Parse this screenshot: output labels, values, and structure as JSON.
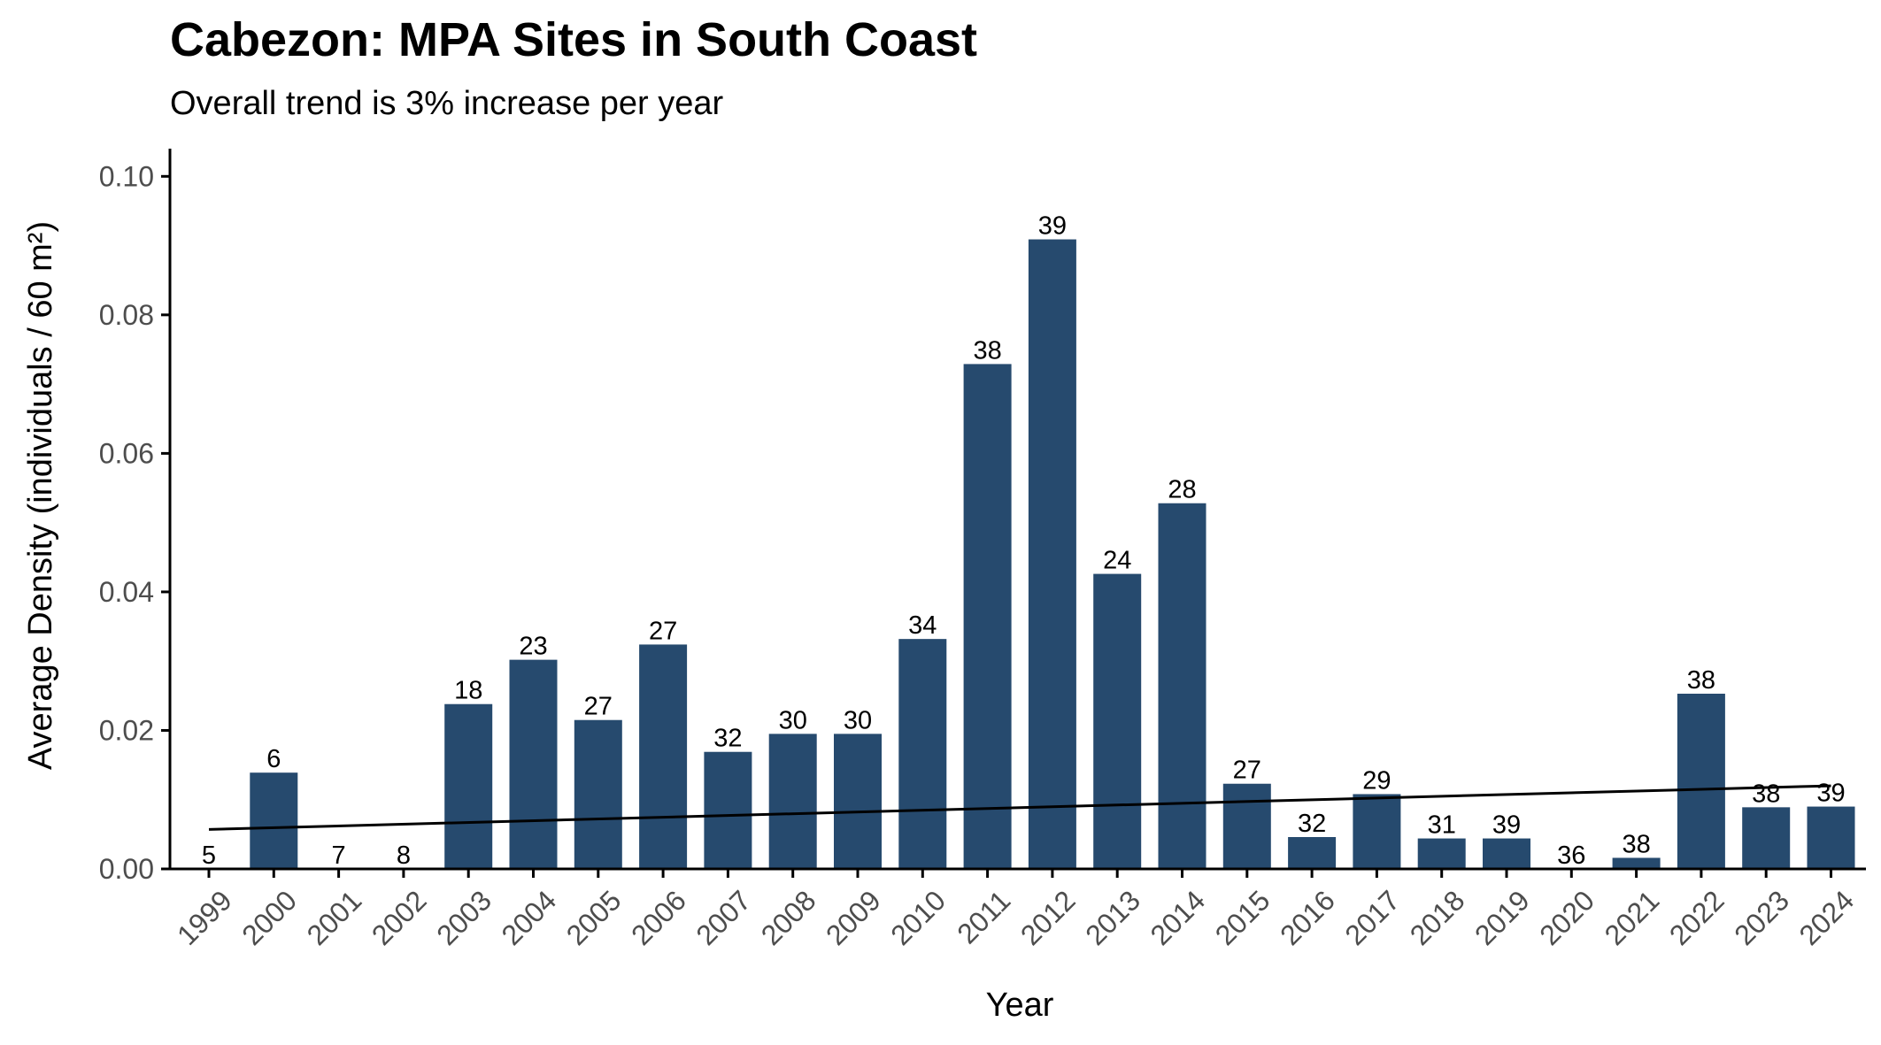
{
  "chart_data": {
    "type": "bar",
    "title": "Cabezon: MPA Sites in South Coast",
    "subtitle": "Overall trend is 3% increase per year",
    "xlabel": "Year",
    "ylabel": "Average Density (individuals / 60 m²)",
    "ylim": [
      0,
      0.104
    ],
    "yticks": [
      0.0,
      0.02,
      0.04,
      0.06,
      0.08,
      0.1
    ],
    "ytick_labels": [
      "0.00",
      "0.02",
      "0.04",
      "0.06",
      "0.08",
      "0.10"
    ],
    "categories": [
      "1999",
      "2000",
      "2001",
      "2002",
      "2003",
      "2004",
      "2005",
      "2006",
      "2007",
      "2008",
      "2009",
      "2010",
      "2011",
      "2012",
      "2013",
      "2014",
      "2015",
      "2016",
      "2017",
      "2018",
      "2019",
      "2020",
      "2021",
      "2022",
      "2023",
      "2024"
    ],
    "values": [
      0.0,
      0.0139,
      0.0,
      0.0,
      0.0238,
      0.0302,
      0.0215,
      0.0324,
      0.0169,
      0.0195,
      0.0195,
      0.0332,
      0.0729,
      0.0909,
      0.0426,
      0.0528,
      0.0123,
      0.0046,
      0.0108,
      0.0044,
      0.0044,
      0.0,
      0.0016,
      0.0253,
      0.0089,
      0.009
    ],
    "bar_labels": [
      "5",
      "6",
      "7",
      "8",
      "18",
      "23",
      "27",
      "27",
      "32",
      "30",
      "30",
      "34",
      "38",
      "39",
      "24",
      "28",
      "27",
      "32",
      "29",
      "31",
      "39",
      "36",
      "38",
      "38",
      "38",
      "39"
    ],
    "trend_line": {
      "x": [
        "1999",
        "2024"
      ],
      "y": [
        0.0057,
        0.012
      ]
    },
    "colors": {
      "bar": "#264a6e",
      "trend": "#000000",
      "axis": "#000000",
      "tick_label": "#4d4d4d"
    },
    "grid": false,
    "legend": "none"
  }
}
